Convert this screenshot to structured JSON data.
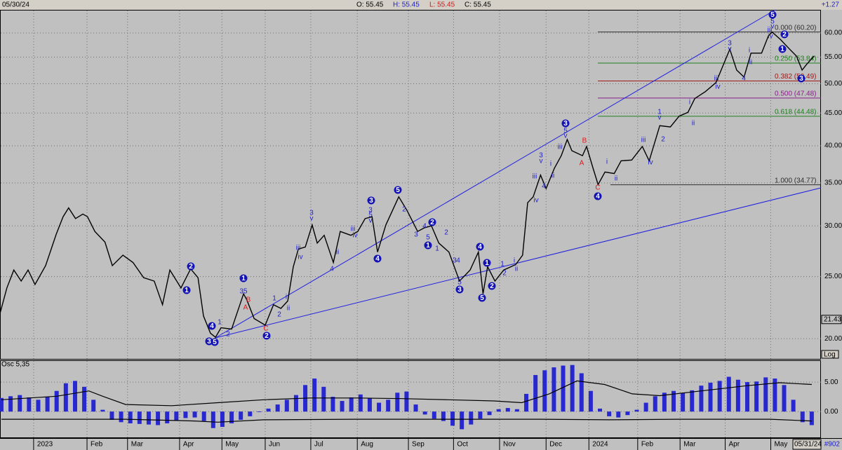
{
  "header": {
    "date": "05/30/24",
    "open": "O: 55.45",
    "high": "H: 55.45",
    "low": "L: 55.45",
    "close": "C: 55.45",
    "change": "+1.27"
  },
  "chart_data": [
    {
      "type": "line",
      "log_scale": true,
      "grid": true,
      "color": "#000000",
      "x": [
        -0.73,
        -0.58,
        -0.43,
        -0.27,
        -0.12,
        0.03,
        0.26,
        0.49,
        0.64,
        0.76,
        0.91,
        1.07,
        1.17,
        1.33,
        1.55,
        1.71,
        1.94,
        2.16,
        2.39,
        2.62,
        2.8,
        2.96,
        3.2,
        3.41,
        3.57,
        3.69,
        3.84,
        3.95,
        4.07,
        4.3,
        4.56,
        4.63,
        4.79,
        5.03,
        5.21,
        5.37,
        5.52,
        5.64,
        5.75,
        5.9,
        6.05,
        6.16,
        6.31,
        6.51,
        6.66,
        6.89,
        7.04,
        7.2,
        7.35,
        7.47,
        7.65,
        7.93,
        8.11,
        8.34,
        8.49,
        8.64,
        8.8,
        9.02,
        9.25,
        9.48,
        9.66,
        9.76,
        9.86,
        10.02,
        10.21,
        10.47,
        10.62,
        10.73,
        10.85,
        11.01,
        11.13,
        11.31,
        11.46,
        11.59,
        11.69,
        11.92,
        12.01,
        12.15,
        12.26,
        12.41,
        12.61,
        12.76,
        12.99,
        13.22,
        13.37,
        13.6,
        13.83,
        14.02,
        14.21,
        14.36,
        14.59,
        14.82,
        15.12,
        15.27,
        15.43,
        15.58,
        15.81,
        15.96,
        16.04,
        16.22,
        16.42,
        16.57,
        16.69,
        16.8,
        16.95
      ],
      "values": [
        21.9,
        24.0,
        25.6,
        24.6,
        25.6,
        24.3,
        26.0,
        29.1,
        31.0,
        32.0,
        30.8,
        31.3,
        31.0,
        29.4,
        28.3,
        26.0,
        27.0,
        26.3,
        24.9,
        24.6,
        22.6,
        25.6,
        24.0,
        25.7,
        24.9,
        21.7,
        20.4,
        20.1,
        20.8,
        20.7,
        23.5,
        23.0,
        21.5,
        21.0,
        22.6,
        22.3,
        22.9,
        25.9,
        27.6,
        27.8,
        30.1,
        28.2,
        29.0,
        26.3,
        29.4,
        29.0,
        29.4,
        30.8,
        31.0,
        27.3,
        30.1,
        33.3,
        31.7,
        29.4,
        29.8,
        30.0,
        28.2,
        27.3,
        24.6,
        25.6,
        27.3,
        23.5,
        25.9,
        24.6,
        25.6,
        26.1,
        27.0,
        32.6,
        33.3,
        36.0,
        34.3,
        36.9,
        38.6,
        40.9,
        39.3,
        38.6,
        39.9,
        36.9,
        34.8,
        36.4,
        36.2,
        37.9,
        38.0,
        39.9,
        37.9,
        43.0,
        42.8,
        44.5,
        45.1,
        47.4,
        48.6,
        50.2,
        56.6,
        52.5,
        51.2,
        55.8,
        55.8,
        59.4,
        60.2,
        58.6,
        56.6,
        55.2,
        52.5,
        53.7,
        55.2
      ],
      "xlim": [
        -0.73,
        17.1
      ],
      "ylim": [
        18.6,
        65.2
      ],
      "xticks": [
        {
          "value": 0,
          "label": "2023"
        },
        {
          "value": 1.16,
          "label": "Feb"
        },
        {
          "value": 2.04,
          "label": "Mar"
        },
        {
          "value": 3.17,
          "label": "Apr"
        },
        {
          "value": 4.09,
          "label": "May"
        },
        {
          "value": 5.03,
          "label": "Jun"
        },
        {
          "value": 6.02,
          "label": "Jul"
        },
        {
          "value": 7.03,
          "label": "Aug"
        },
        {
          "value": 8.14,
          "label": "Sep"
        },
        {
          "value": 9.12,
          "label": "Oct"
        },
        {
          "value": 10.12,
          "label": "Nov"
        },
        {
          "value": 11.13,
          "label": "Dec"
        },
        {
          "value": 12.06,
          "label": "2024"
        },
        {
          "value": 13.12,
          "label": "Feb"
        },
        {
          "value": 14.04,
          "label": "Mar"
        },
        {
          "value": 15.02,
          "label": "Apr"
        },
        {
          "value": 16.01,
          "label": "May"
        }
      ],
      "yticks": [
        {
          "value": 20,
          "label": "20.00"
        },
        {
          "value": 25,
          "label": "25.00"
        },
        {
          "value": 30,
          "label": "30.00"
        },
        {
          "value": 35,
          "label": "35.00"
        },
        {
          "value": 40,
          "label": "40.00"
        },
        {
          "value": 45,
          "label": "45.00"
        },
        {
          "value": 50,
          "label": "50.00"
        },
        {
          "value": 55,
          "label": "55.00"
        },
        {
          "value": 60,
          "label": "60.00"
        }
      ],
      "marker_value": 21.43,
      "scale_label": "Log",
      "end_date": "05/31/24",
      "bar_count": "#902",
      "trend_color": "#2020e0",
      "fib_levels": [
        {
          "value": 60.2,
          "label": "0.000 (60.20)",
          "color": "#303030"
        },
        {
          "value": 53.84,
          "label": "0.250 (53.84)",
          "color": "#208020"
        },
        {
          "value": 50.49,
          "label": "0.382 (50.49)",
          "color": "#a01818"
        },
        {
          "value": 47.48,
          "label": "0.500 (47.48)",
          "color": "#882088"
        },
        {
          "value": 44.48,
          "label": "0.618 (44.48)",
          "color": "#208020"
        },
        {
          "value": 34.77,
          "label": "1.000 (34.77)",
          "color": "#303030"
        }
      ],
      "circled_color": "#1414b4",
      "circled_labels": [
        "2",
        "1",
        "4",
        "3",
        "5",
        "1",
        "2",
        "3",
        "4",
        "5",
        "2",
        "1",
        "3",
        "4",
        "1",
        "2",
        "5",
        "3",
        "4",
        "5",
        "2",
        "1",
        "3"
      ],
      "wave_color": "#1e1ec8",
      "wave_labels": [
        "35",
        "1",
        "2",
        "1",
        "i",
        "2",
        "ii",
        "iii",
        "iv",
        "3",
        "v",
        "ii",
        "4",
        "iii",
        "iv",
        "3",
        "5",
        "v",
        "2",
        "3",
        "4",
        "5",
        "1",
        "2",
        "3",
        "4",
        "5",
        "1",
        "2",
        "i",
        "ii",
        "3",
        "v",
        "iii",
        "iv",
        "4",
        "i",
        "ii",
        "iii",
        "5",
        "v",
        "i",
        "ii",
        "iii",
        "iv",
        "1",
        "v",
        "2",
        "i",
        "ii",
        "iii",
        "iv",
        "3",
        "v",
        "i",
        "ii",
        "4",
        "iii",
        "iv",
        "5",
        "v"
      ],
      "correction_color": "#e01818",
      "correction_labels": [
        "B",
        "A",
        "C",
        "B",
        "A",
        "C"
      ]
    },
    {
      "type": "bar",
      "title": "Osc 5,35",
      "color": "#2828d0",
      "grid": true,
      "x": [
        -0.7,
        -0.5,
        -0.3,
        -0.1,
        0.1,
        0.3,
        0.5,
        0.7,
        0.9,
        1.1,
        1.3,
        1.5,
        1.7,
        1.9,
        2.1,
        2.3,
        2.5,
        2.7,
        2.9,
        3.1,
        3.3,
        3.5,
        3.7,
        3.9,
        4.1,
        4.3,
        4.5,
        4.7,
        4.9,
        5.1,
        5.3,
        5.5,
        5.7,
        5.9,
        6.1,
        6.3,
        6.5,
        6.7,
        6.9,
        7.1,
        7.3,
        7.5,
        7.7,
        7.9,
        8.1,
        8.3,
        8.5,
        8.7,
        8.9,
        9.1,
        9.3,
        9.5,
        9.7,
        9.9,
        10.1,
        10.3,
        10.5,
        10.7,
        10.9,
        11.1,
        11.3,
        11.5,
        11.7,
        11.9,
        12.1,
        12.3,
        12.5,
        12.7,
        12.9,
        13.1,
        13.3,
        13.5,
        13.7,
        13.9,
        14.1,
        14.3,
        14.5,
        14.7,
        14.9,
        15.1,
        15.3,
        15.5,
        15.7,
        15.9,
        16.1,
        16.3,
        16.5,
        16.7,
        16.9
      ],
      "values": [
        2.3,
        2.6,
        2.8,
        2.4,
        2.0,
        2.5,
        3.5,
        4.8,
        5.2,
        4.2,
        2.0,
        0.3,
        -1.4,
        -1.8,
        -2.0,
        -2.1,
        -2.2,
        -2.3,
        -2.0,
        -1.5,
        -1.1,
        -1.0,
        -1.6,
        -2.8,
        -2.6,
        -2.0,
        -1.4,
        -0.8,
        -0.1,
        0.5,
        1.2,
        2.0,
        2.8,
        4.5,
        5.6,
        4.2,
        2.5,
        1.8,
        2.4,
        2.9,
        2.3,
        1.5,
        2.0,
        3.2,
        3.4,
        1.2,
        -0.5,
        -1.2,
        -1.6,
        -2.4,
        -3.0,
        -2.2,
        -1.2,
        -0.6,
        0.4,
        0.6,
        0.4,
        3.0,
        6.2,
        7.0,
        7.5,
        7.8,
        7.9,
        6.5,
        3.5,
        0.5,
        -0.8,
        -1.0,
        -0.6,
        0.3,
        1.5,
        2.6,
        3.2,
        3.5,
        3.1,
        3.6,
        4.4,
        4.9,
        5.2,
        5.9,
        5.4,
        5.0,
        5.1,
        5.8,
        5.6,
        4.5,
        2.0,
        -1.8,
        -2.3
      ],
      "xlim": [
        -0.73,
        17.1
      ],
      "ylim": [
        -4.5,
        8.7
      ],
      "yticks": [
        {
          "value": 5,
          "label": "5.00"
        },
        {
          "value": 0,
          "label": "0.00"
        }
      ],
      "lines": [
        {
          "color": "#000000",
          "x": [
            -0.7,
            0.5,
            1.2,
            1.5,
            2.0,
            3.0,
            4.0,
            5.0,
            6.0,
            7.0,
            8.0,
            9.0,
            10.0,
            10.6,
            11.2,
            11.8,
            12.4,
            13.0,
            13.6,
            14.5,
            15.5,
            16.2,
            16.9
          ],
          "values": [
            2.0,
            2.6,
            3.5,
            2.6,
            1.2,
            1.0,
            1.5,
            2.0,
            2.3,
            2.3,
            2.2,
            2.0,
            1.8,
            1.5,
            3.0,
            5.2,
            4.6,
            3.0,
            2.7,
            3.5,
            4.4,
            4.9,
            4.6
          ]
        },
        {
          "color": "#000000",
          "x": [
            -0.7,
            2.0,
            3.5,
            4.0,
            5.0,
            7.0,
            9.0,
            11.0,
            12.5,
            14.0,
            16.0,
            16.9
          ],
          "values": [
            -1.3,
            -1.3,
            -1.6,
            -1.8,
            -1.4,
            -1.3,
            -1.3,
            -1.3,
            -1.4,
            -1.3,
            -1.3,
            -1.6
          ]
        }
      ]
    }
  ]
}
